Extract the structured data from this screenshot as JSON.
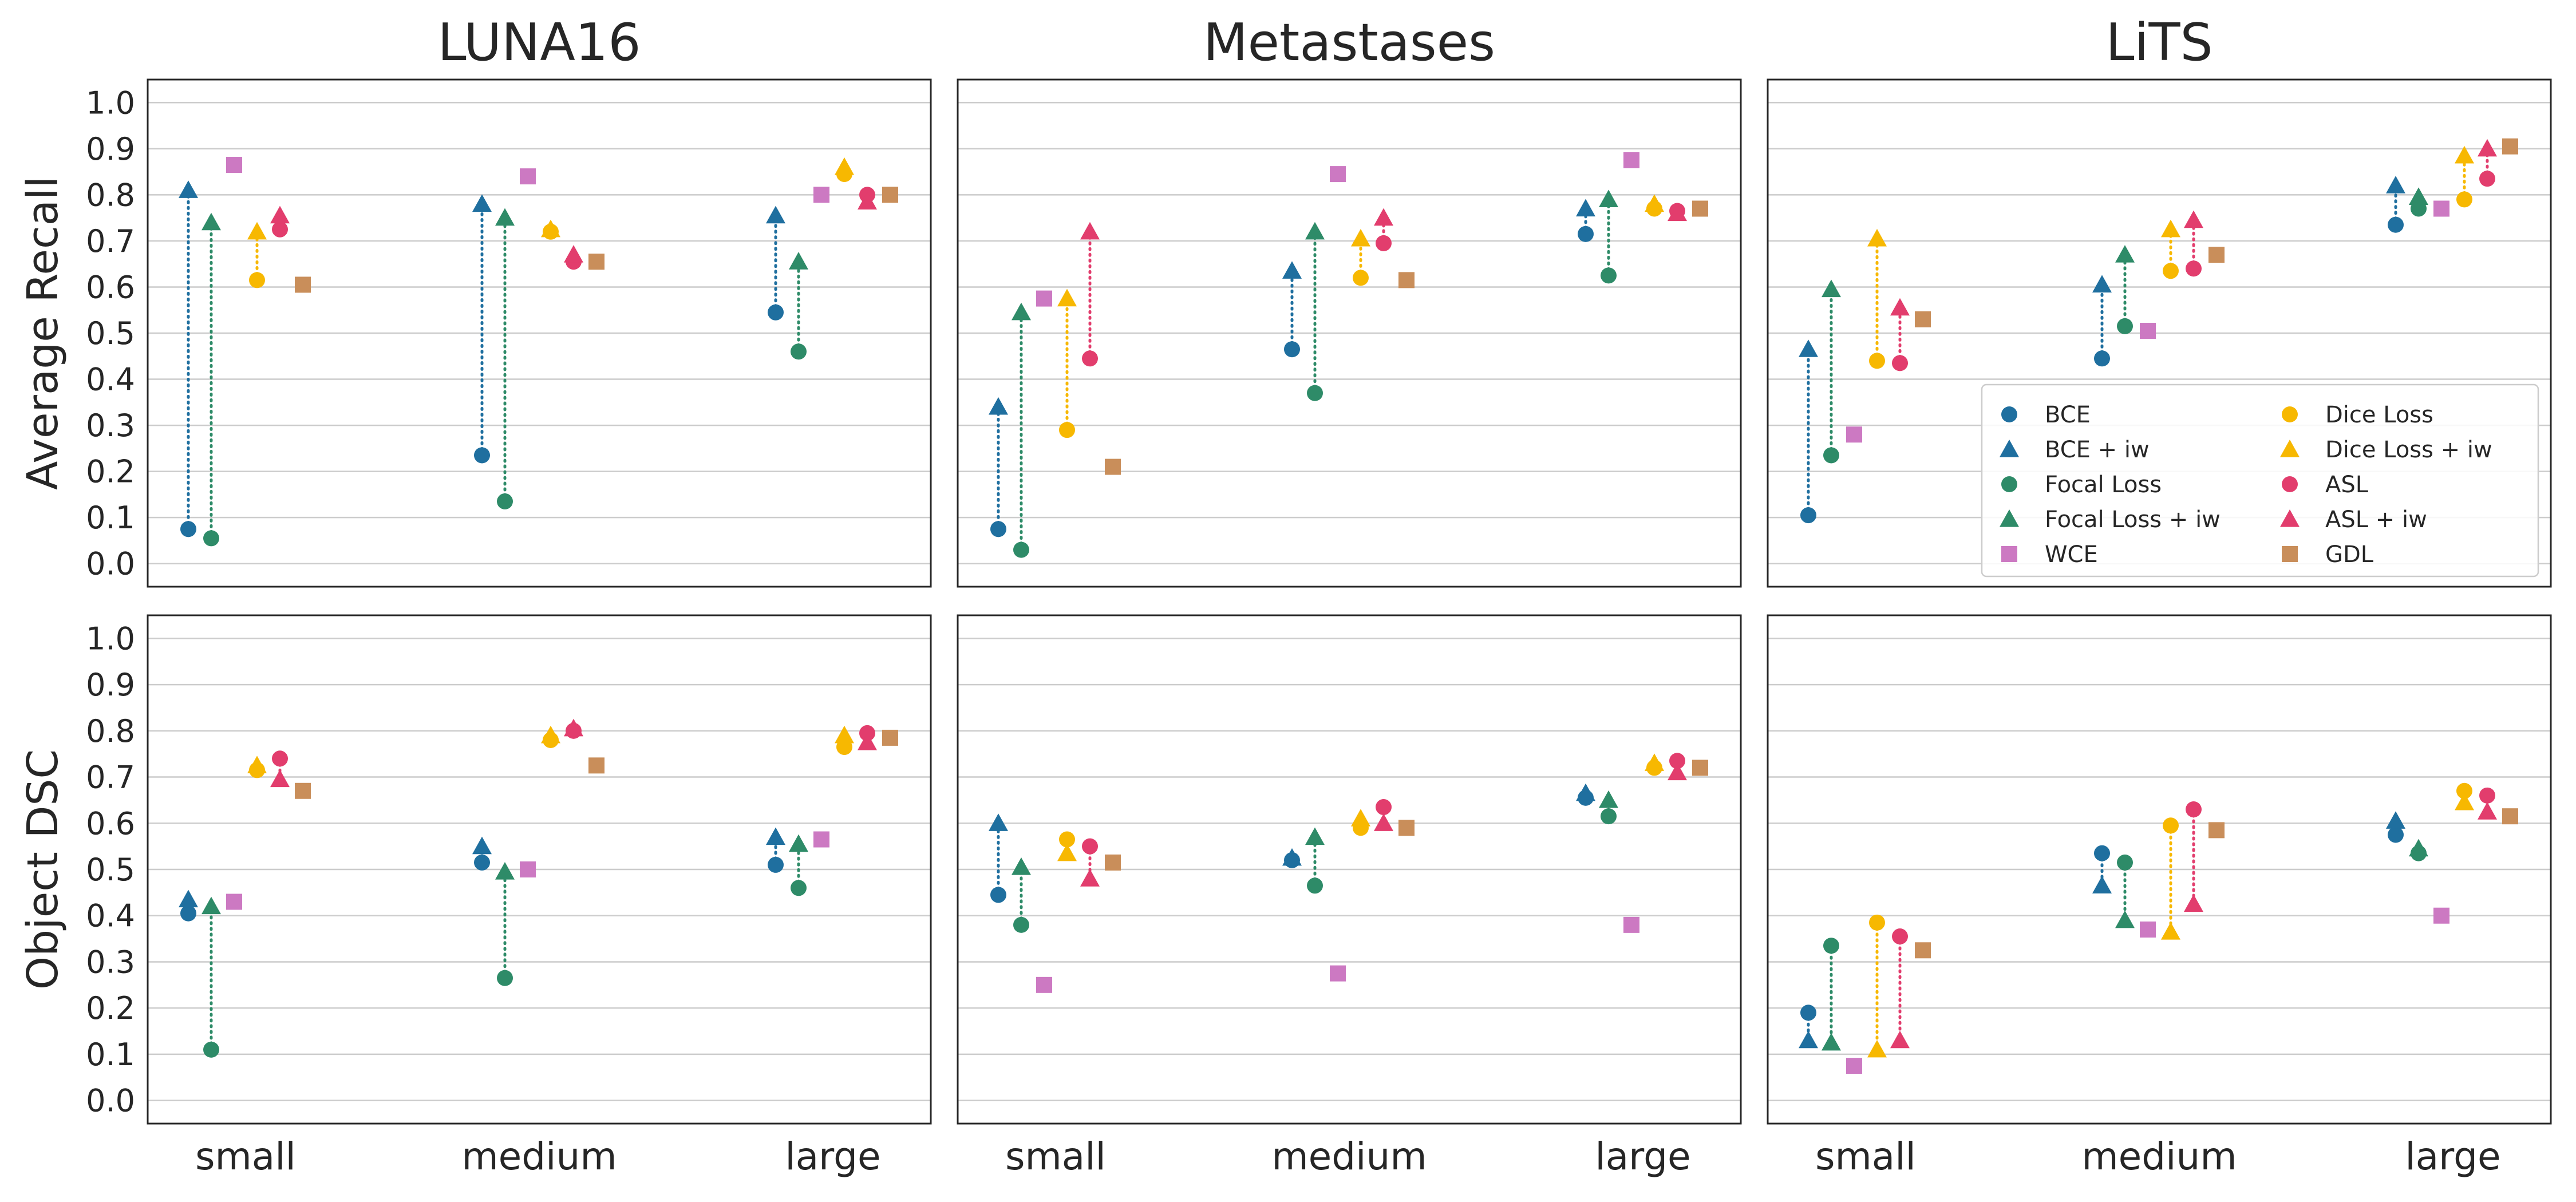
{
  "chart_data": {
    "type": "scatter",
    "subtype": "dumbbell-grid",
    "columns": [
      "LUNA16",
      "Metastases",
      "LiTS"
    ],
    "rows": [
      {
        "ylabel": "Average Recall",
        "key": "recall"
      },
      {
        "ylabel": "Object DSC",
        "key": "dsc"
      }
    ],
    "categories": [
      "small",
      "medium",
      "large"
    ],
    "ylim": [
      -0.05,
      1.05
    ],
    "yticks": [
      "0.0",
      "0.1",
      "0.2",
      "0.3",
      "0.4",
      "0.5",
      "0.6",
      "0.7",
      "0.8",
      "0.9",
      "1.0"
    ],
    "grid": "horizontal",
    "legend_location": "lower-right of top-right panel",
    "series": [
      {
        "name": "BCE",
        "color": "#1f6f9f",
        "marker": "circle"
      },
      {
        "name": "BCE + iw",
        "color": "#1f6f9f",
        "marker": "triangle"
      },
      {
        "name": "Focal Loss",
        "color": "#2e8b68",
        "marker": "circle"
      },
      {
        "name": "Focal Loss + iw",
        "color": "#2e8b68",
        "marker": "triangle"
      },
      {
        "name": "WCE",
        "color": "#cc79c2",
        "marker": "square"
      },
      {
        "name": "Dice Loss",
        "color": "#f7b801",
        "marker": "circle"
      },
      {
        "name": "Dice Loss + iw",
        "color": "#f7b801",
        "marker": "triangle"
      },
      {
        "name": "ASL",
        "color": "#e23d6d",
        "marker": "circle"
      },
      {
        "name": "ASL + iw",
        "color": "#e23d6d",
        "marker": "triangle"
      },
      {
        "name": "GDL",
        "color": "#c98e5a",
        "marker": "square"
      }
    ],
    "values": {
      "recall": {
        "LUNA16": {
          "small": {
            "BCE": 0.075,
            "BCE + iw": 0.81,
            "Focal Loss": 0.055,
            "Focal Loss + iw": 0.74,
            "WCE": 0.865,
            "Dice Loss": 0.615,
            "Dice Loss + iw": 0.72,
            "ASL": 0.725,
            "ASL + iw": 0.755,
            "GDL": 0.605
          },
          "medium": {
            "BCE": 0.235,
            "BCE + iw": 0.78,
            "Focal Loss": 0.135,
            "Focal Loss + iw": 0.75,
            "WCE": 0.84,
            "Dice Loss": 0.72,
            "Dice Loss + iw": 0.725,
            "ASL": 0.655,
            "ASL + iw": 0.67,
            "GDL": 0.655
          },
          "large": {
            "BCE": 0.545,
            "BCE + iw": 0.755,
            "Focal Loss": 0.46,
            "Focal Loss + iw": 0.655,
            "WCE": 0.8,
            "Dice Loss": 0.845,
            "Dice Loss + iw": 0.86,
            "ASL": 0.8,
            "ASL + iw": 0.785,
            "GDL": 0.8
          }
        },
        "Metastases": {
          "small": {
            "BCE": 0.075,
            "BCE + iw": 0.34,
            "Focal Loss": 0.03,
            "Focal Loss + iw": 0.545,
            "WCE": 0.575,
            "Dice Loss": 0.29,
            "Dice Loss + iw": 0.575,
            "ASL": 0.445,
            "ASL + iw": 0.72,
            "GDL": 0.21
          },
          "medium": {
            "BCE": 0.465,
            "BCE + iw": 0.635,
            "Focal Loss": 0.37,
            "Focal Loss + iw": 0.72,
            "WCE": 0.845,
            "Dice Loss": 0.62,
            "Dice Loss + iw": 0.705,
            "ASL": 0.695,
            "ASL + iw": 0.75,
            "GDL": 0.615
          },
          "large": {
            "BCE": 0.715,
            "BCE + iw": 0.77,
            "Focal Loss": 0.625,
            "Focal Loss + iw": 0.79,
            "WCE": 0.875,
            "Dice Loss": 0.77,
            "Dice Loss + iw": 0.78,
            "ASL": 0.765,
            "ASL + iw": 0.76,
            "GDL": 0.77
          }
        },
        "LiTS": {
          "small": {
            "BCE": 0.105,
            "BCE + iw": 0.465,
            "Focal Loss": 0.235,
            "Focal Loss + iw": 0.595,
            "WCE": 0.28,
            "Dice Loss": 0.44,
            "Dice Loss + iw": 0.705,
            "ASL": 0.435,
            "ASL + iw": 0.555,
            "GDL": 0.53
          },
          "medium": {
            "BCE": 0.445,
            "BCE + iw": 0.605,
            "Focal Loss": 0.515,
            "Focal Loss + iw": 0.67,
            "WCE": 0.505,
            "Dice Loss": 0.635,
            "Dice Loss + iw": 0.725,
            "ASL": 0.64,
            "ASL + iw": 0.745,
            "GDL": 0.67
          },
          "large": {
            "BCE": 0.735,
            "BCE + iw": 0.82,
            "Focal Loss": 0.77,
            "Focal Loss + iw": 0.795,
            "WCE": 0.77,
            "Dice Loss": 0.79,
            "Dice Loss + iw": 0.885,
            "ASL": 0.835,
            "ASL + iw": 0.9,
            "GDL": 0.905
          }
        }
      },
      "dsc": {
        "LUNA16": {
          "small": {
            "BCE": 0.405,
            "BCE + iw": 0.435,
            "Focal Loss": 0.11,
            "Focal Loss + iw": 0.42,
            "WCE": 0.43,
            "Dice Loss": 0.715,
            "Dice Loss + iw": 0.725,
            "ASL": 0.74,
            "ASL + iw": 0.695,
            "GDL": 0.67
          },
          "medium": {
            "BCE": 0.515,
            "BCE + iw": 0.55,
            "Focal Loss": 0.265,
            "Focal Loss + iw": 0.495,
            "WCE": 0.5,
            "Dice Loss": 0.78,
            "Dice Loss + iw": 0.79,
            "ASL": 0.8,
            "ASL + iw": 0.805,
            "GDL": 0.725
          },
          "large": {
            "BCE": 0.51,
            "BCE + iw": 0.57,
            "Focal Loss": 0.46,
            "Focal Loss + iw": 0.555,
            "WCE": 0.565,
            "Dice Loss": 0.765,
            "Dice Loss + iw": 0.79,
            "ASL": 0.795,
            "ASL + iw": 0.775,
            "GDL": 0.785
          }
        },
        "Metastases": {
          "small": {
            "BCE": 0.445,
            "BCE + iw": 0.6,
            "Focal Loss": 0.38,
            "Focal Loss + iw": 0.505,
            "WCE": 0.25,
            "Dice Loss": 0.565,
            "Dice Loss + iw": 0.535,
            "ASL": 0.55,
            "ASL + iw": 0.48,
            "GDL": 0.515
          },
          "medium": {
            "BCE": 0.52,
            "BCE + iw": 0.525,
            "Focal Loss": 0.465,
            "Focal Loss + iw": 0.57,
            "WCE": 0.275,
            "Dice Loss": 0.59,
            "Dice Loss + iw": 0.61,
            "ASL": 0.635,
            "ASL + iw": 0.6,
            "GDL": 0.59
          },
          "large": {
            "BCE": 0.655,
            "BCE + iw": 0.665,
            "Focal Loss": 0.615,
            "Focal Loss + iw": 0.65,
            "WCE": 0.38,
            "Dice Loss": 0.72,
            "Dice Loss + iw": 0.73,
            "ASL": 0.735,
            "ASL + iw": 0.71,
            "GDL": 0.72
          }
        },
        "LiTS": {
          "small": {
            "BCE": 0.19,
            "BCE + iw": 0.13,
            "Focal Loss": 0.335,
            "Focal Loss + iw": 0.125,
            "WCE": 0.075,
            "Dice Loss": 0.385,
            "Dice Loss + iw": 0.11,
            "ASL": 0.355,
            "ASL + iw": 0.13,
            "GDL": 0.325
          },
          "medium": {
            "BCE": 0.535,
            "BCE + iw": 0.465,
            "Focal Loss": 0.515,
            "Focal Loss + iw": 0.39,
            "WCE": 0.37,
            "Dice Loss": 0.595,
            "Dice Loss + iw": 0.365,
            "ASL": 0.63,
            "ASL + iw": 0.425,
            "GDL": 0.585
          },
          "large": {
            "BCE": 0.575,
            "BCE + iw": 0.605,
            "Focal Loss": 0.535,
            "Focal Loss + iw": 0.545,
            "WCE": 0.4,
            "Dice Loss": 0.67,
            "Dice Loss + iw": 0.645,
            "ASL": 0.66,
            "ASL + iw": 0.625,
            "GDL": 0.615
          }
        }
      }
    }
  }
}
